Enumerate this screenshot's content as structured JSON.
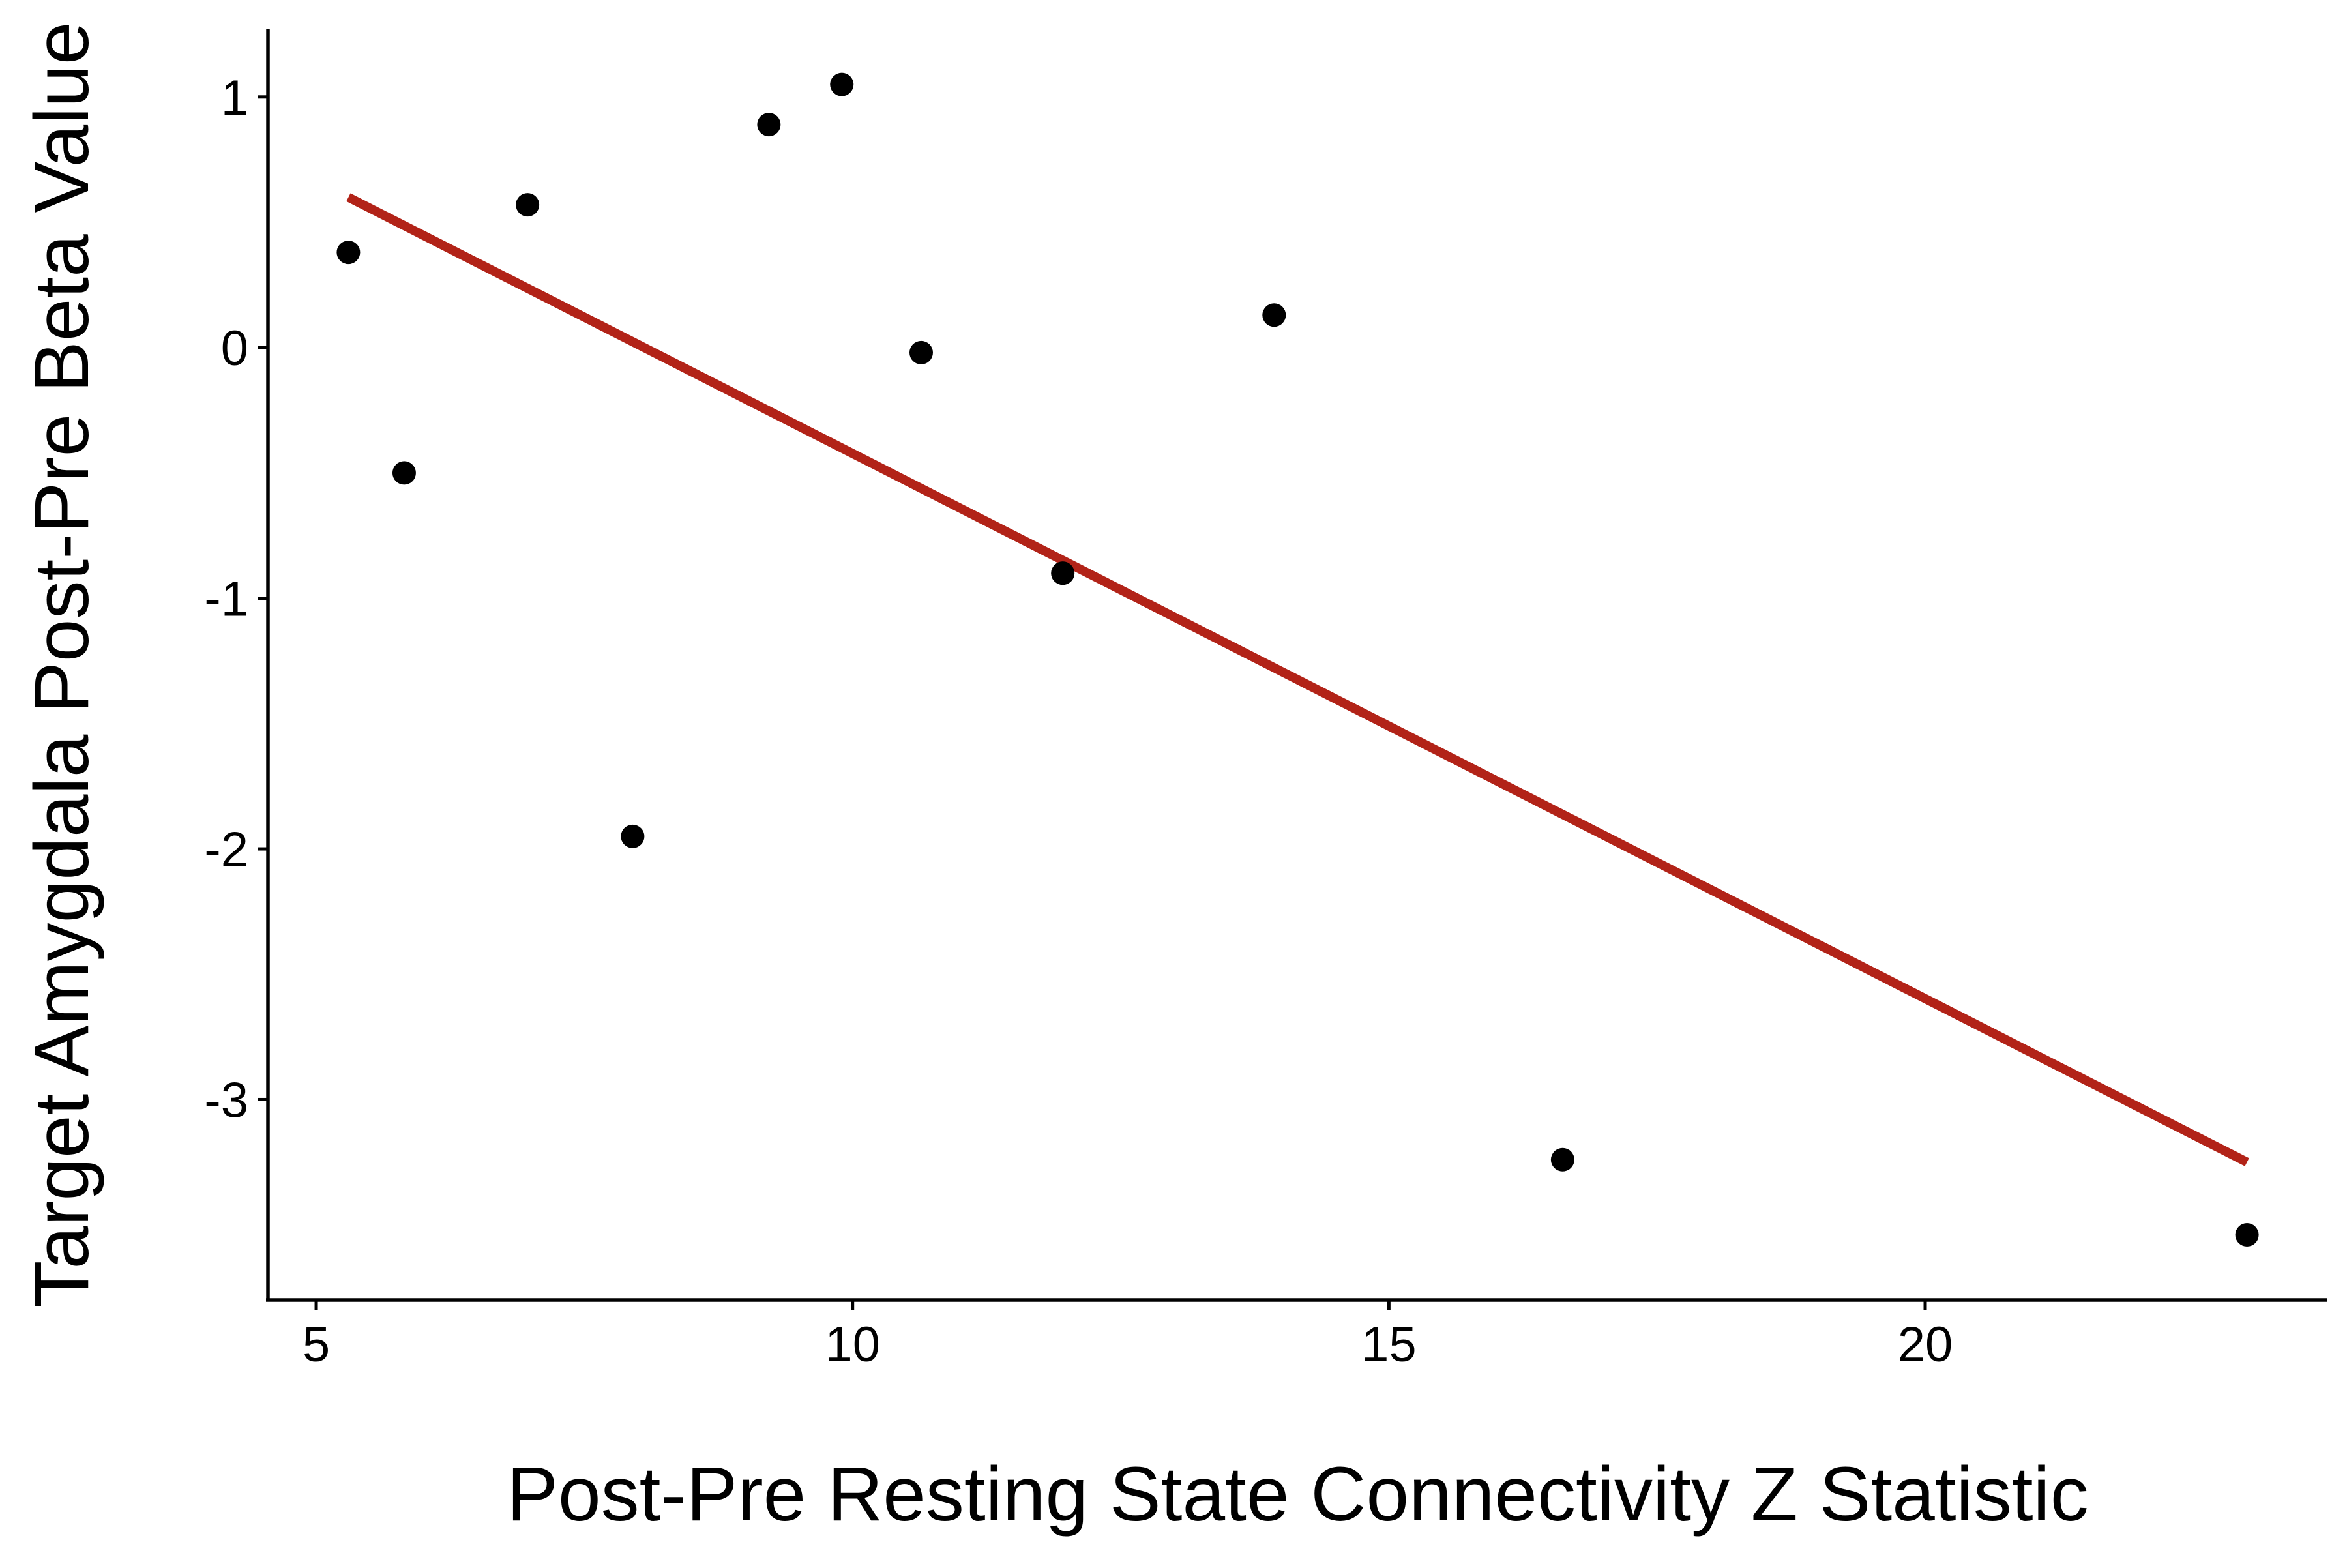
{
  "chart_data": {
    "type": "scatter",
    "xlabel": "Post-Pre Resting State Connectivity Z Statistic",
    "ylabel": "Target Amygdala Post-Pre Beta Value",
    "xlim": [
      4.55,
      23.75
    ],
    "ylim": [
      -3.8,
      1.27
    ],
    "x_ticks": [
      5,
      10,
      15,
      20
    ],
    "y_ticks": [
      1,
      0,
      -1,
      -2,
      -3
    ],
    "grid": false,
    "legend": "none",
    "colors": {
      "points": "#000000",
      "fit_line": "#B22318",
      "axes": "#000000"
    },
    "series": [
      {
        "points": [
          {
            "x": 5.3,
            "y": 0.38
          },
          {
            "x": 5.82,
            "y": -0.5
          },
          {
            "x": 6.97,
            "y": 0.57
          },
          {
            "x": 7.95,
            "y": -1.95
          },
          {
            "x": 9.22,
            "y": 0.89
          },
          {
            "x": 9.9,
            "y": 1.05
          },
          {
            "x": 10.64,
            "y": -0.02
          },
          {
            "x": 11.96,
            "y": -0.9
          },
          {
            "x": 13.93,
            "y": 0.13
          },
          {
            "x": 16.62,
            "y": -3.24
          },
          {
            "x": 23.0,
            "y": -3.54
          }
        ]
      }
    ],
    "fit_line": {
      "x": [
        5.3,
        23.0
      ],
      "y": [
        0.6,
        -3.25
      ]
    }
  }
}
